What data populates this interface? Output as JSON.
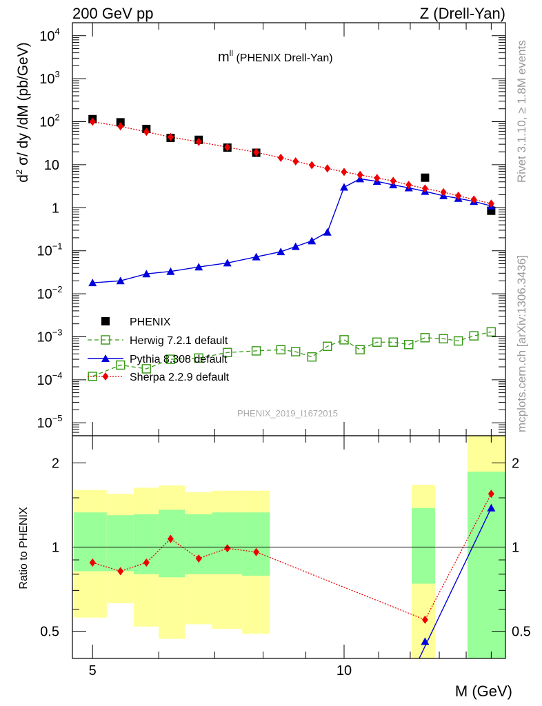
{
  "header": {
    "left": "200 GeV pp",
    "right": "Z (Drell-Yan)"
  },
  "side_labels": {
    "rivet": "Rivet 3.1.10, ≥ 1.8M events",
    "mcplots": "mcplots.cern.ch [arXiv:1306.3436]"
  },
  "plot_title": "m",
  "plot_title_sup": "ll",
  "plot_title_rest": " (PHENIX Drell-Yan)",
  "watermark": "PHENIX_2019_I1672015",
  "colors": {
    "phenix": "#000000",
    "herwig": "#3a9b1a",
    "pythia": "#0000dd",
    "sherpa": "#ee0000",
    "band_yellow": "#ffff99",
    "band_green": "#99ff99"
  },
  "chart_data": [
    {
      "type": "scatter",
      "title": "",
      "ylabel": "d² σ/ dy /dM (pb/GeV)",
      "xlabel": "",
      "xscale": "log",
      "yscale": "log",
      "xlim": [
        4.73,
        15.6
      ],
      "ylim": [
        5e-06,
        20000
      ],
      "yticks": [
        {
          "v": 1e-05,
          "m": "10",
          "e": "−5"
        },
        {
          "v": 0.0001,
          "m": "10",
          "e": "−4"
        },
        {
          "v": 0.001,
          "m": "10",
          "e": "−3"
        },
        {
          "v": 0.01,
          "m": "10",
          "e": "−2"
        },
        {
          "v": 0.1,
          "m": "10",
          "e": "−1"
        },
        {
          "v": 1,
          "m": "1",
          "e": ""
        },
        {
          "v": 10,
          "m": "10",
          "e": ""
        },
        {
          "v": 100,
          "m": "10",
          "e": "2"
        },
        {
          "v": 1000,
          "m": "10",
          "e": "3"
        },
        {
          "v": 10000,
          "m": "10",
          "e": "4"
        }
      ],
      "legend_position": "middle-left",
      "series": [
        {
          "name": "PHENIX",
          "style": "data",
          "x": [
            5.0,
            5.4,
            5.8,
            6.2,
            6.7,
            7.25,
            7.85,
            12.5,
            15.0
          ],
          "y": [
            115,
            97,
            68,
            42,
            38,
            25,
            19,
            5.0,
            0.85
          ]
        },
        {
          "name": "Herwig 7.2.1 default",
          "style": "herwig",
          "x": [
            5.0,
            5.4,
            5.8,
            6.2,
            6.7,
            7.25,
            7.85,
            8.4,
            8.75,
            9.15,
            9.55,
            10.0,
            10.45,
            10.95,
            11.45,
            11.95,
            12.5,
            13.15,
            13.7,
            14.3,
            15.0
          ],
          "y": [
            0.00012,
            0.00022,
            0.00018,
            0.0003,
            0.00032,
            0.00043,
            0.00047,
            0.0005,
            0.00045,
            0.00034,
            0.0006,
            0.00085,
            0.0005,
            0.00075,
            0.00075,
            0.00066,
            0.00095,
            0.0009,
            0.0008,
            0.00105,
            0.0013
          ]
        },
        {
          "name": "Pythia 8.308 default",
          "style": "pythia",
          "x": [
            5.0,
            5.4,
            5.8,
            6.2,
            6.7,
            7.25,
            7.85,
            8.4,
            8.75,
            9.15,
            9.55,
            10.0,
            10.45,
            10.95,
            11.45,
            11.95,
            12.5,
            13.15,
            13.7,
            14.3,
            15.0
          ],
          "y": [
            0.018,
            0.02,
            0.029,
            0.033,
            0.042,
            0.052,
            0.072,
            0.095,
            0.125,
            0.17,
            0.27,
            3.0,
            4.7,
            4.1,
            3.4,
            2.9,
            2.4,
            1.9,
            1.65,
            1.4,
            1.1
          ]
        },
        {
          "name": "Sherpa 2.2.9 default",
          "style": "sherpa",
          "x": [
            5.0,
            5.4,
            5.8,
            6.2,
            6.7,
            7.25,
            7.85,
            8.4,
            8.75,
            9.15,
            9.55,
            10.0,
            10.45,
            10.95,
            11.45,
            11.95,
            12.5,
            13.15,
            13.7,
            14.3,
            15.0
          ],
          "y": [
            100,
            78,
            58,
            44,
            34,
            25.5,
            19.5,
            14.5,
            12,
            9.8,
            8.2,
            6.8,
            5.8,
            4.9,
            4.2,
            3.4,
            2.8,
            2.3,
            1.9,
            1.55,
            1.25
          ]
        }
      ]
    },
    {
      "type": "line",
      "title": "",
      "ylabel": "Ratio to PHENIX",
      "xlabel": "M (GeV)",
      "xscale": "log",
      "yscale": "log",
      "xlim": [
        4.73,
        15.6
      ],
      "ylim": [
        0.4,
        2.5
      ],
      "yticks": [
        {
          "v": 0.5,
          "l": "0.5"
        },
        {
          "v": 1,
          "l": "1"
        },
        {
          "v": 2,
          "l": "2"
        }
      ],
      "xticks": [
        {
          "v": 5,
          "l": "5"
        },
        {
          "v": 10,
          "l": "10"
        }
      ],
      "reference": 1,
      "bands": [
        {
          "x0": 4.75,
          "x1": 5.2,
          "y0": 0.56,
          "y1": 1.6,
          "g0": 0.82,
          "g1": 1.33
        },
        {
          "x0": 5.2,
          "x1": 5.6,
          "y0": 0.63,
          "y1": 1.55,
          "g0": 0.82,
          "g1": 1.3
        },
        {
          "x0": 5.6,
          "x1": 6.0,
          "y0": 0.52,
          "y1": 1.63,
          "g0": 0.8,
          "g1": 1.31
        },
        {
          "x0": 6.0,
          "x1": 6.45,
          "y0": 0.47,
          "y1": 1.66,
          "g0": 0.78,
          "g1": 1.36
        },
        {
          "x0": 6.45,
          "x1": 6.95,
          "y0": 0.53,
          "y1": 1.57,
          "g0": 0.8,
          "g1": 1.31
        },
        {
          "x0": 6.95,
          "x1": 7.55,
          "y0": 0.51,
          "y1": 1.59,
          "g0": 0.8,
          "g1": 1.33
        },
        {
          "x0": 7.55,
          "x1": 8.15,
          "y0": 0.49,
          "y1": 1.59,
          "g0": 0.79,
          "g1": 1.33
        },
        {
          "x0": 12.05,
          "x1": 12.85,
          "y0": 0.33,
          "y1": 1.67,
          "g0": 0.74,
          "g1": 1.38
        },
        {
          "x0": 14.05,
          "x1": 15.6,
          "y0": 0.33,
          "y1": 2.6,
          "g0": 0.33,
          "g1": 1.86
        }
      ],
      "series": [
        {
          "name": "Pythia 8.308 default",
          "style": "pythia",
          "x": [
            12.5,
            15.0
          ],
          "y": [
            0.46,
            1.38
          ]
        },
        {
          "name": "Sherpa 2.2.9 default",
          "style": "sherpa",
          "x": [
            5.0,
            5.4,
            5.8,
            6.2,
            6.7,
            7.25,
            7.85,
            12.5,
            15.0
          ],
          "y": [
            0.88,
            0.82,
            0.88,
            1.07,
            0.91,
            0.99,
            0.96,
            0.55,
            1.55
          ]
        }
      ]
    }
  ]
}
